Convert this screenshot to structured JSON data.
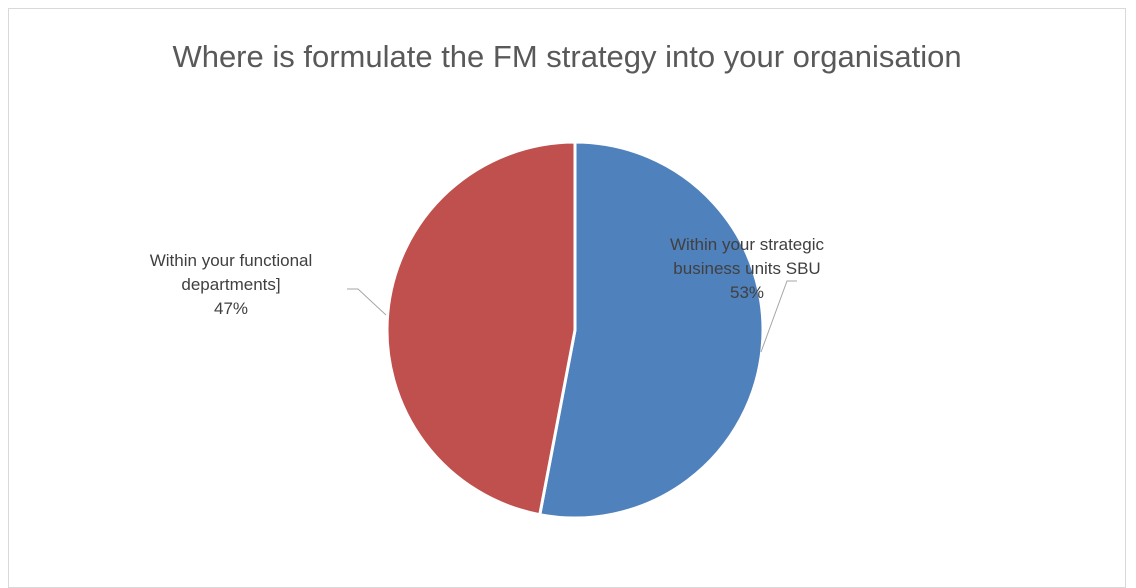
{
  "chart_data": {
    "type": "pie",
    "title": "Where is formulate the FM strategy into your organisation",
    "slices": [
      {
        "label_lines": [
          "Within your strategic",
          "business units SBU"
        ],
        "value_label": "53%",
        "value": 53,
        "color": "#4f81bd"
      },
      {
        "label_lines": [
          "Within your functional",
          "departments]"
        ],
        "value_label": "47%",
        "value": 47,
        "color": "#c0504d"
      }
    ],
    "legend": "none"
  }
}
